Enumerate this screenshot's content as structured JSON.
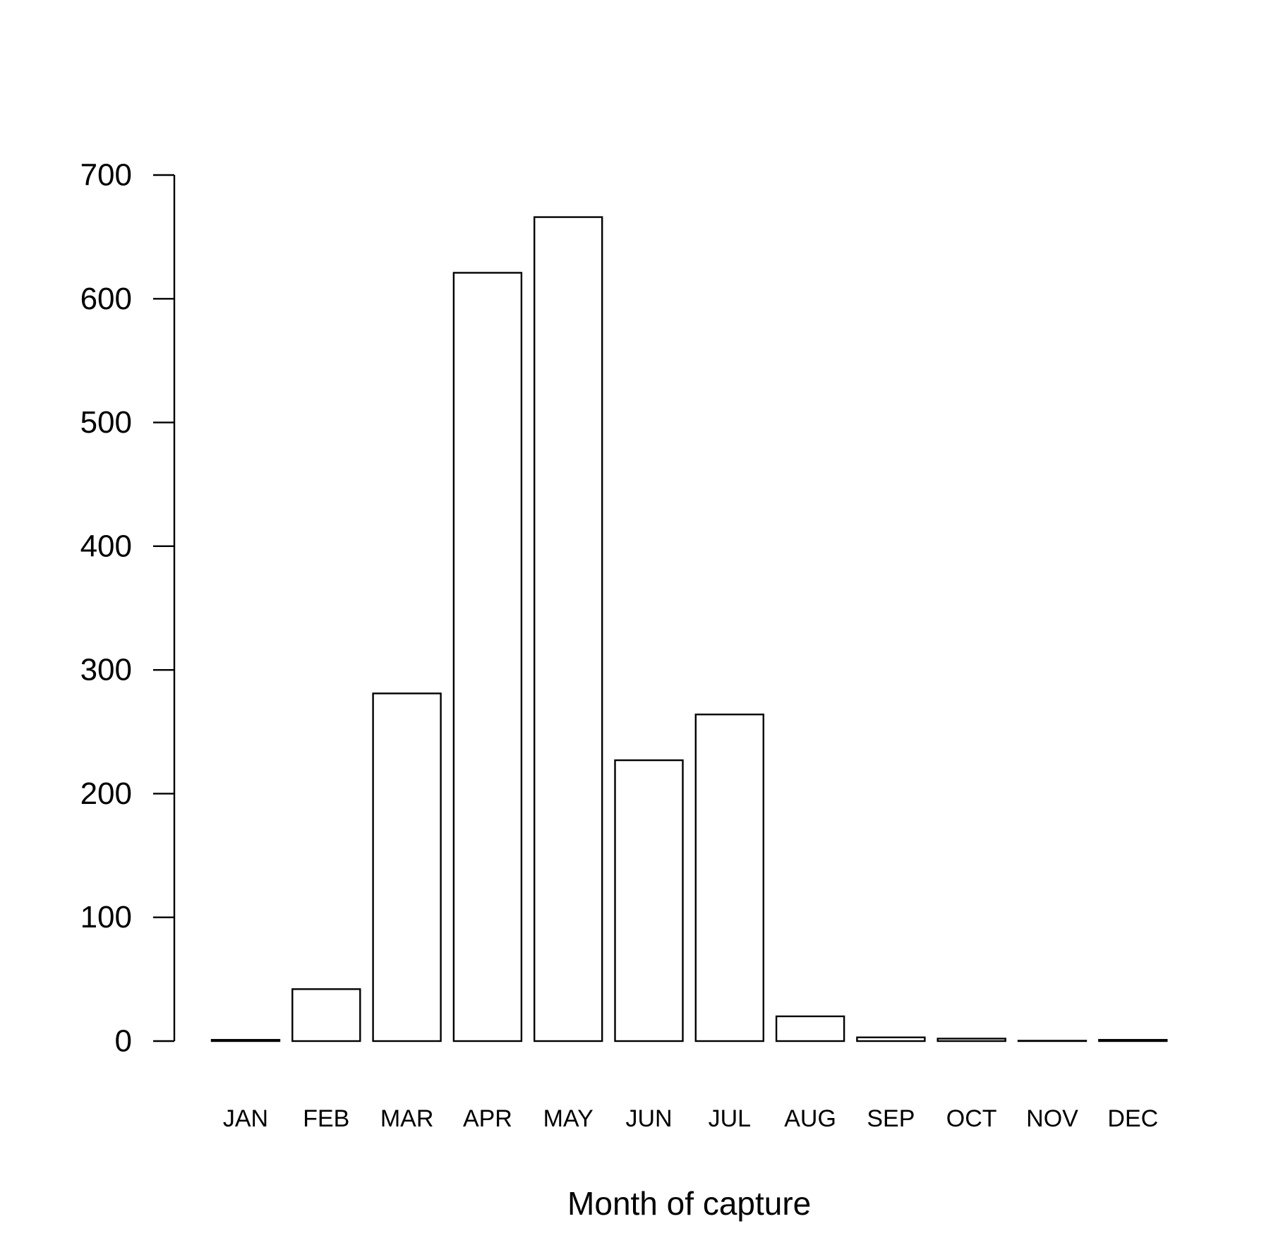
{
  "chart_data": {
    "type": "bar",
    "title": "",
    "xlabel": "Month of capture",
    "ylabel": "",
    "categories": [
      "JAN",
      "FEB",
      "MAR",
      "APR",
      "MAY",
      "JUN",
      "JUL",
      "AUG",
      "SEP",
      "OCT",
      "NOV",
      "DEC"
    ],
    "values": [
      1,
      42,
      281,
      621,
      666,
      227,
      264,
      20,
      3,
      2,
      0,
      1
    ],
    "ylim": [
      0,
      700
    ],
    "yticks": [
      0,
      100,
      200,
      300,
      400,
      500,
      600,
      700
    ],
    "grid": false,
    "bar_fill": "#ffffff",
    "bar_stroke": "#000000"
  }
}
